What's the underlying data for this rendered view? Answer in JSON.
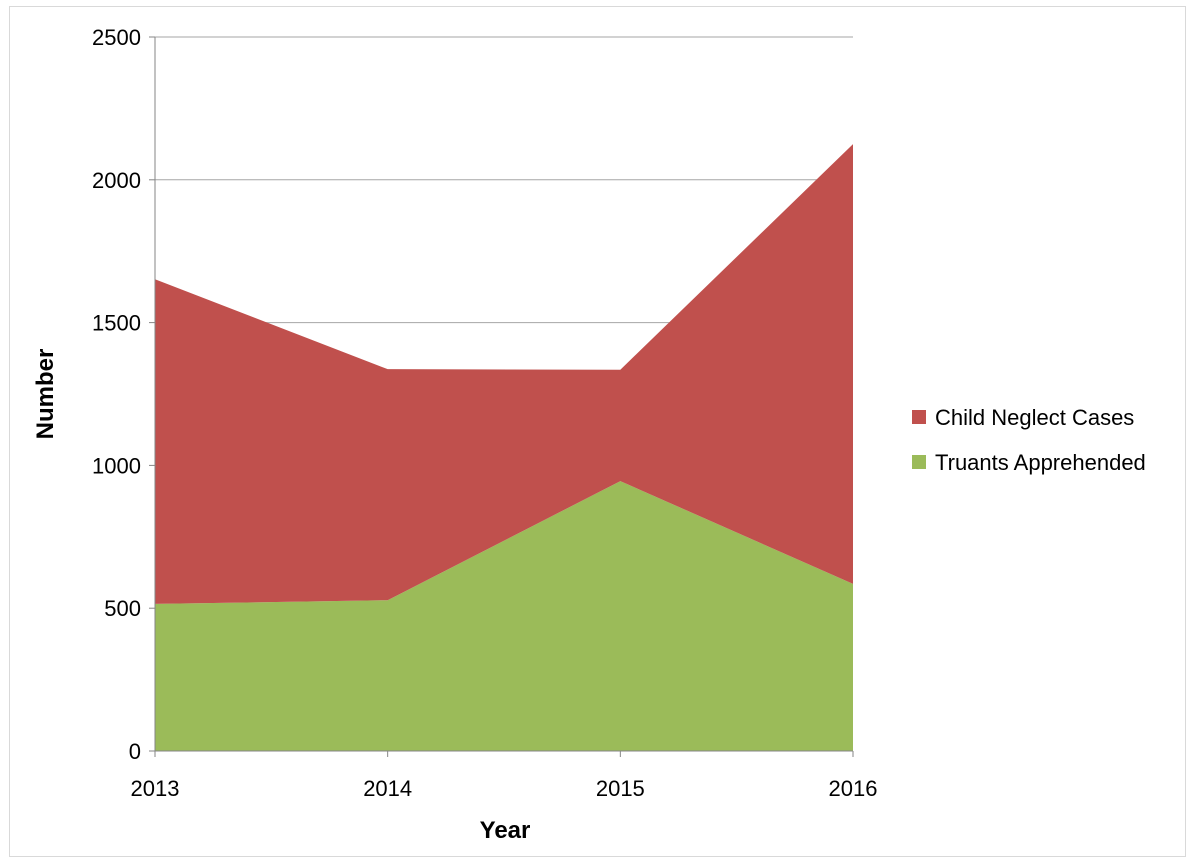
{
  "chart_data": {
    "type": "area",
    "stacked": true,
    "title": "",
    "xlabel": "Year",
    "ylabel": "Number",
    "categories": [
      "2013",
      "2014",
      "2015",
      "2016"
    ],
    "ylim": [
      0,
      2500
    ],
    "yticks": [
      0,
      500,
      1000,
      1500,
      2000,
      2500
    ],
    "grid": true,
    "legend_position": "right",
    "series": [
      {
        "name": "Truants Apprehended",
        "values": [
          515,
          528,
          945,
          585
        ],
        "color": "#9bbb59"
      },
      {
        "name": "Child Neglect Cases",
        "values": [
          1137,
          809,
          390,
          1540
        ],
        "color": "#c0504d"
      }
    ],
    "legend": [
      {
        "name": "Child Neglect Cases",
        "color": "#c0504d"
      },
      {
        "name": "Truants Apprehended",
        "color": "#9bbb59"
      }
    ]
  }
}
